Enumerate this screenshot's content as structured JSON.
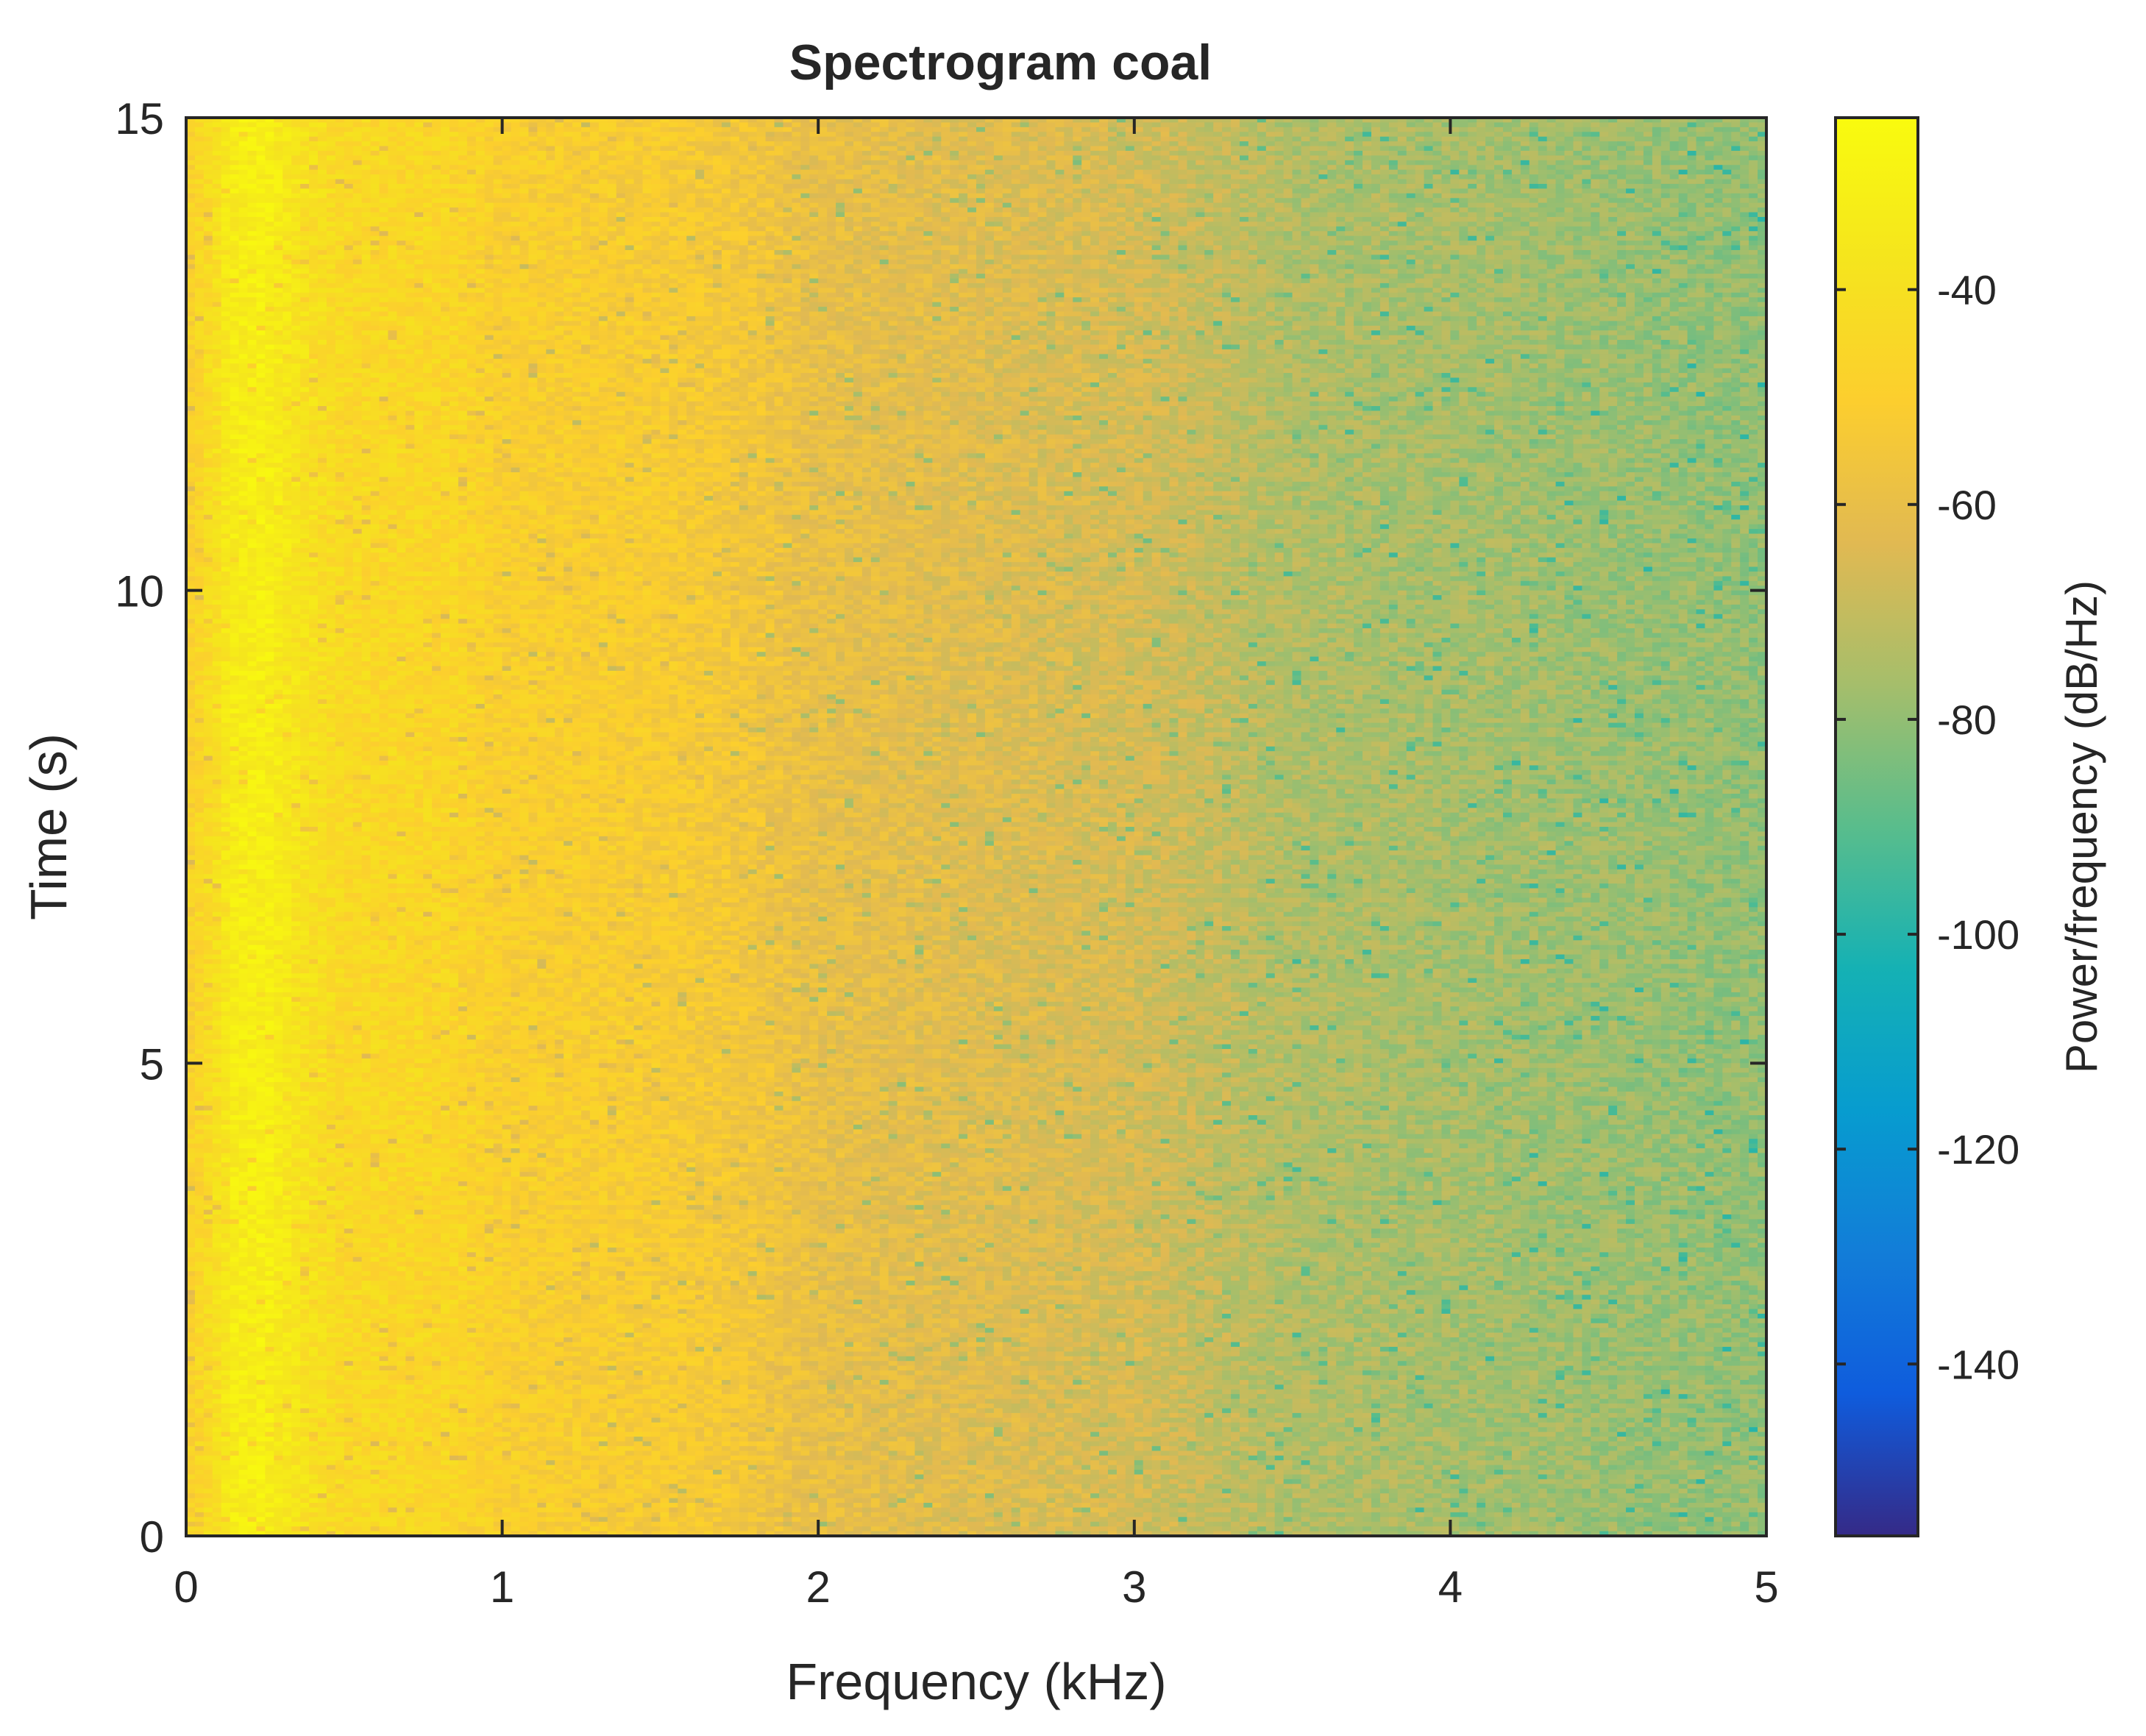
{
  "chart_data": {
    "type": "heatmap",
    "title": "Spectrogram coal",
    "xlabel": "Frequency (kHz)",
    "ylabel": "Time (s)",
    "xlim": [
      0,
      5
    ],
    "ylim": [
      0,
      15
    ],
    "x_ticks": [
      0,
      1,
      2,
      3,
      4,
      5
    ],
    "x_tick_labels": [
      "0",
      "1",
      "2",
      "3",
      "4",
      "5"
    ],
    "y_ticks": [
      0,
      5,
      10,
      15
    ],
    "y_tick_labels": [
      "0",
      "5",
      "10",
      "15"
    ],
    "colorbar": {
      "label": "Power/frequency (dB/Hz)",
      "range": [
        -156,
        -24
      ],
      "ticks": [
        -40,
        -60,
        -80,
        -100,
        -120,
        -140
      ],
      "tick_labels": [
        "-40",
        "-60",
        "-80",
        "-100",
        "-120",
        "-140"
      ],
      "colormap": "parula"
    },
    "grid": false,
    "description_of_field": {
      "frequency_kHz": [
        0,
        0.1,
        0.15,
        0.25,
        0.35,
        0.5,
        0.85,
        1.0,
        1.5,
        1.75,
        2.0,
        2.5,
        3.0,
        3.25,
        3.5,
        4.0,
        4.5,
        5.0
      ],
      "mean_power_dB_per_Hz": [
        -50,
        -40,
        -33,
        -31,
        -38,
        -44,
        -46,
        -50,
        -52,
        -55,
        -60,
        -63,
        -66,
        -70,
        -74,
        -76,
        -78,
        -80
      ]
    }
  }
}
